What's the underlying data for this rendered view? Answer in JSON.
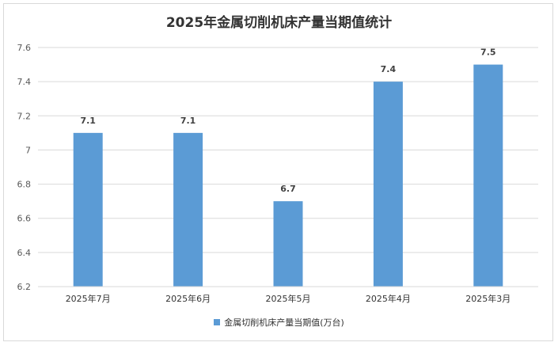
{
  "chart_data": {
    "type": "bar",
    "title": "2025年金属切削机床产量当期值统计",
    "categories": [
      "2025年7月",
      "2025年6月",
      "2025年5月",
      "2025年4月",
      "2025年3月"
    ],
    "series": [
      {
        "name": "金属切削机床产量当期值(万台)",
        "values": [
          7.1,
          7.1,
          6.7,
          7.4,
          7.5
        ]
      }
    ],
    "data_labels": [
      "7.1",
      "7.1",
      "6.7",
      "7.4",
      "7.5"
    ],
    "y_ticks": [
      "6.2",
      "6.4",
      "6.6",
      "6.8",
      "7",
      "7.2",
      "7.4",
      "7.6"
    ],
    "ylim": [
      6.2,
      7.6
    ],
    "grid": true,
    "legend_position": "bottom",
    "colors": {
      "bar": "#5b9bd5",
      "grid": "#d9d9d9",
      "axis": "#d9d9d9"
    }
  }
}
